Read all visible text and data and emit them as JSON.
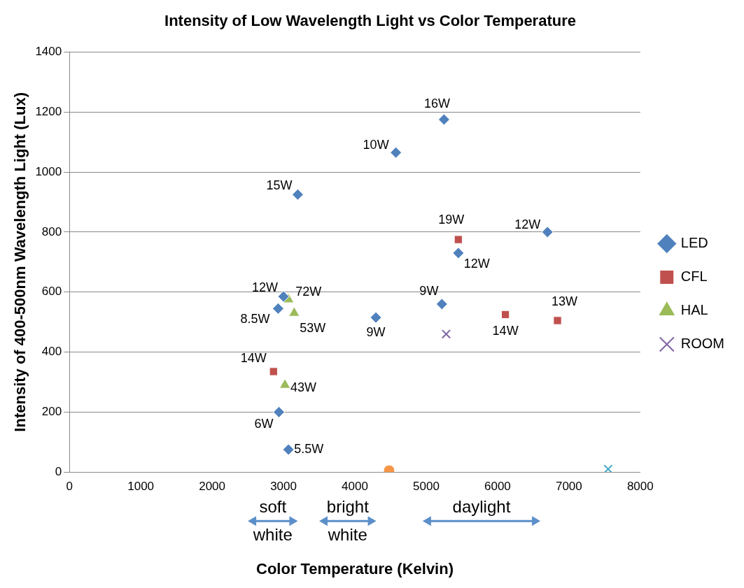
{
  "chart_data": {
    "type": "scatter",
    "title": "Intensity of Low Wavelength Light vs Color Temperature",
    "xlabel": "Color Temperature (Kelvin)",
    "ylabel": "Intensity of 400-500nm Wavelength Light (Lux)",
    "xlim": [
      0,
      8000
    ],
    "xticks": [
      0,
      1000,
      2000,
      3000,
      4000,
      5000,
      6000,
      7000,
      8000
    ],
    "ylim": [
      0,
      1400
    ],
    "yticks": [
      0,
      200,
      400,
      600,
      800,
      1000,
      1200,
      1400
    ],
    "grid": "y",
    "legend": "right",
    "series": [
      {
        "name": "LED",
        "color": "#4f81bd",
        "marker": "diamond",
        "x": [
          5250,
          4575,
          3200,
          6700,
          5450,
          3000,
          5220,
          2925,
          4295,
          2936,
          3070
        ],
        "values": [
          1175,
          1065,
          925,
          800,
          730,
          585,
          560,
          545,
          515,
          200,
          75
        ]
      },
      {
        "name": "CFL",
        "color": "#c0504d",
        "marker": "square",
        "x": [
          5450,
          6110,
          6840,
          2860
        ],
        "values": [
          775,
          525,
          505,
          335
        ]
      },
      {
        "name": "HAL",
        "color": "#9bbb59",
        "marker": "triangle",
        "x": [
          3070,
          3150,
          3020
        ],
        "values": [
          575,
          530,
          290
        ]
      },
      {
        "name": "ROOM",
        "color": "#8064a2",
        "marker": "cross",
        "x": [
          5280
        ],
        "values": [
          460
        ]
      },
      {
        "color": "#4bacc6",
        "marker": "cross",
        "x": [
          7550
        ],
        "values": [
          10
        ]
      },
      {
        "color": "#f79646",
        "marker": "circle",
        "x": [
          4480
        ],
        "values": [
          5
        ]
      }
    ],
    "annotations": [
      {
        "text": "16W",
        "x": 5250,
        "y": 1175
      },
      {
        "text": "10W",
        "x": 4575,
        "y": 1065
      },
      {
        "text": "15W",
        "x": 3200,
        "y": 925
      },
      {
        "text": "12W",
        "x": 6700,
        "y": 800
      },
      {
        "text": "12W",
        "x": 5450,
        "y": 730
      },
      {
        "text": "12W",
        "x": 3000,
        "y": 585
      },
      {
        "text": "9W",
        "x": 5220,
        "y": 560
      },
      {
        "text": "8.5W",
        "x": 2925,
        "y": 545
      },
      {
        "text": "9W",
        "x": 4295,
        "y": 515
      },
      {
        "text": "6W",
        "x": 2936,
        "y": 200
      },
      {
        "text": "5.5W",
        "x": 3070,
        "y": 75
      },
      {
        "text": "19W",
        "x": 5450,
        "y": 775
      },
      {
        "text": "14W",
        "x": 6110,
        "y": 525
      },
      {
        "text": "13W",
        "x": 6840,
        "y": 505
      },
      {
        "text": "14W",
        "x": 2860,
        "y": 335
      },
      {
        "text": "72W",
        "x": 3070,
        "y": 575
      },
      {
        "text": "53W",
        "x": 3150,
        "y": 530
      },
      {
        "text": "43W",
        "x": 3020,
        "y": 290
      },
      "soft white",
      "bright white",
      "daylight"
    ]
  }
}
